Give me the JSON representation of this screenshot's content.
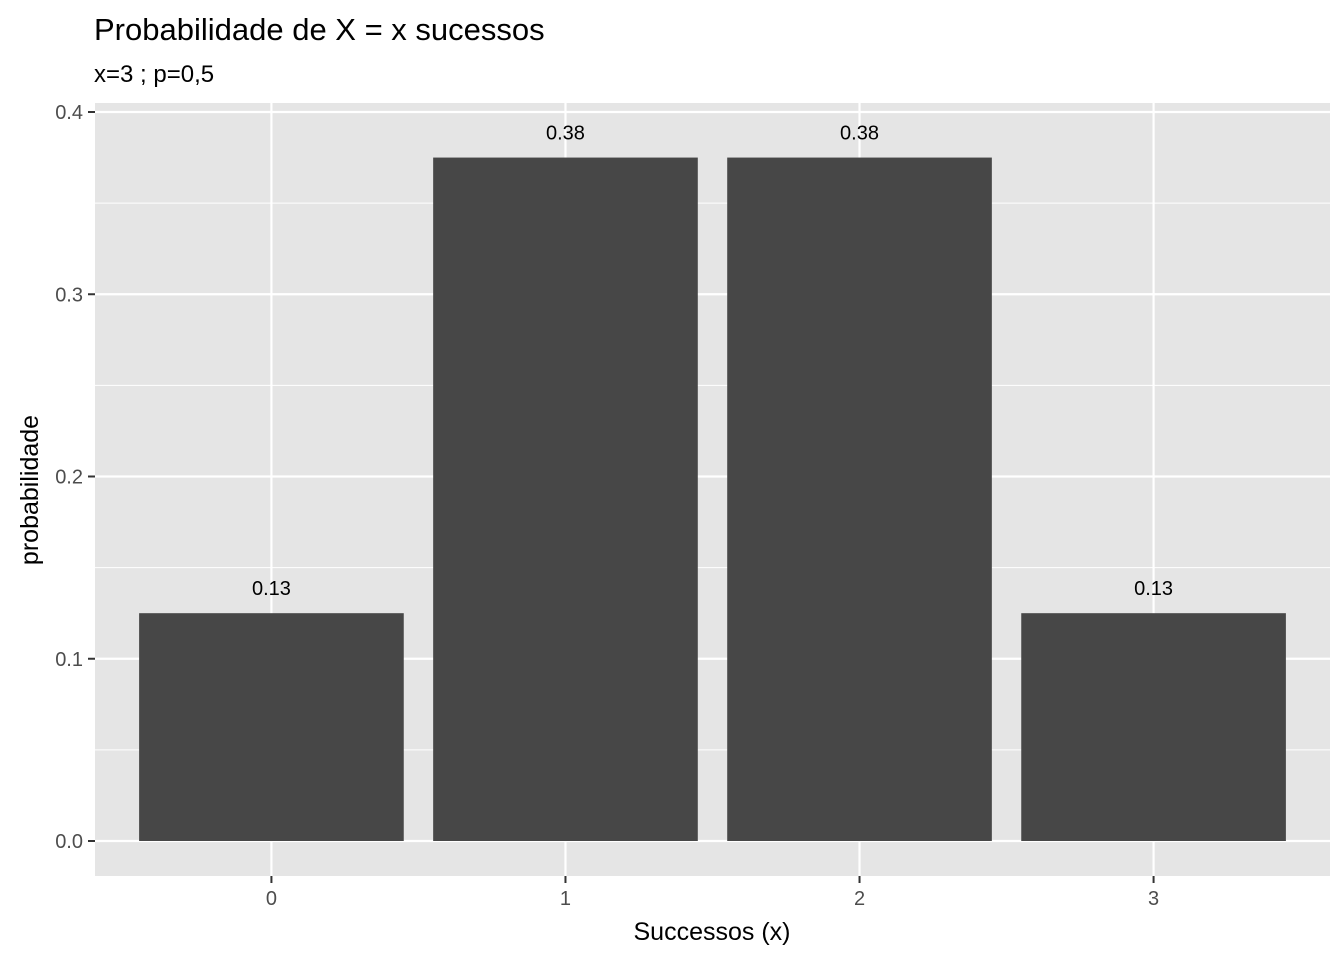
{
  "chart_data": {
    "type": "bar",
    "title": "Probabilidade de X = x sucessos",
    "subtitle": "x=3 ; p=0,5",
    "xlabel": "Successos (x)",
    "ylabel": "probabilidade",
    "categories": [
      "0",
      "1",
      "2",
      "3"
    ],
    "values": [
      0.125,
      0.375,
      0.375,
      0.125
    ],
    "data_labels": [
      "0.13",
      "0.38",
      "0.38",
      "0.13"
    ],
    "ylim": [
      -0.02,
      0.4
    ],
    "y_ticks": [
      0,
      0.1,
      0.2,
      0.3,
      0.4
    ],
    "y_tick_labels": [
      "0.0",
      "0.1",
      "0.2",
      "0.3",
      "0.4"
    ],
    "y_minor_ticks": [
      0.05,
      0.15,
      0.25,
      0.35
    ],
    "grid": true,
    "legend": "none",
    "colors": {
      "bar": "#474747",
      "panel": "#e5e5e5",
      "grid": "#ffffff",
      "tick_text": "#4d4d4d",
      "tick_mark": "#333333"
    }
  }
}
